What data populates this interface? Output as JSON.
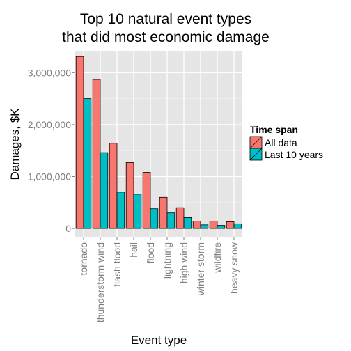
{
  "chart_data": {
    "type": "bar",
    "title_lines": [
      "Top 10 natural event types",
      "that did most economic damage"
    ],
    "xlabel": "Event type",
    "ylabel": "Damages, $K",
    "categories": [
      "tornado",
      "thunderstorm wind",
      "flash flood",
      "hail",
      "flood",
      "lightning",
      "high wind",
      "winter storm",
      "wildfire",
      "heavy snow"
    ],
    "series": [
      {
        "name": "All data",
        "color": "#f8766d",
        "values": [
          3310000,
          2870000,
          1640000,
          1270000,
          1080000,
          600000,
          400000,
          140000,
          140000,
          130000
        ]
      },
      {
        "name": "Last 10 years",
        "color": "#00bfc4",
        "values": [
          2500000,
          1460000,
          700000,
          660000,
          380000,
          300000,
          210000,
          70000,
          60000,
          90000
        ]
      }
    ],
    "ylim": [
      -160000,
      3420000
    ],
    "yticks": [
      0,
      1000000,
      2000000,
      3000000
    ],
    "ytick_labels": [
      "0",
      "1,000,000",
      "2,000,000",
      "3,000,000"
    ],
    "legend_title": "Time span",
    "legend_position": "right",
    "grid": true
  }
}
